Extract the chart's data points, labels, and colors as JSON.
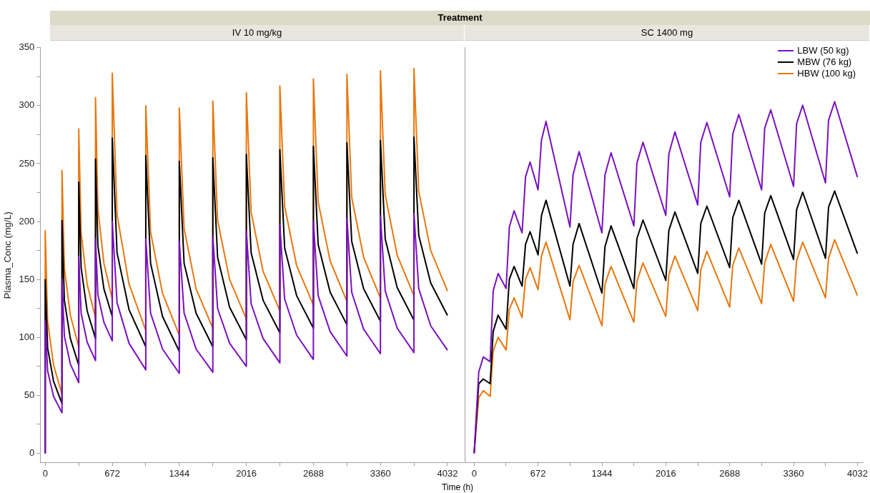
{
  "chart_data": [
    {
      "type": "line",
      "title": "Treatment",
      "subtitle": "IV 10 mg/kg",
      "xlabel": "Time (h)",
      "ylabel": "Plasma_Conc (mg/L)",
      "x": [
        0,
        0,
        24,
        84,
        168,
        168,
        192,
        252,
        336,
        336,
        360,
        420,
        504,
        504,
        528,
        588,
        672,
        672,
        720,
        840,
        1008,
        1008,
        1056,
        1176,
        1344,
        1344,
        1392,
        1512,
        1680,
        1680,
        1728,
        1848,
        2016,
        2016,
        2064,
        2184,
        2352,
        2352,
        2400,
        2520,
        2688,
        2688,
        2736,
        2856,
        3024,
        3024,
        3072,
        3192,
        3360,
        3360,
        3408,
        3528,
        3696,
        3696,
        3744,
        3864,
        4032
      ],
      "series": [
        {
          "color": "#7a10c0",
          "values": [
            0,
            115,
            71,
            49,
            35,
            150,
            101,
            77,
            61,
            170,
            121,
            96,
            80,
            185,
            137,
            113,
            97,
            200,
            130,
            95,
            72,
            185,
            121,
            90,
            69,
            183,
            121,
            90,
            70,
            187,
            125,
            95,
            75,
            192,
            129,
            99,
            78,
            197,
            133,
            102,
            81,
            200,
            136,
            105,
            84,
            203,
            139,
            107,
            86,
            205,
            140,
            108,
            87,
            207,
            142,
            110,
            89
          ]
        },
        {
          "color": "#000000",
          "values": [
            0,
            150,
            91,
            62,
            43,
            201,
            132,
            99,
            76,
            234,
            160,
            123,
            99,
            254,
            179,
            142,
            118,
            272,
            173,
            124,
            92,
            257,
            164,
            118,
            88,
            252,
            164,
            121,
            92,
            255,
            169,
            126,
            98,
            258,
            173,
            132,
            104,
            262,
            177,
            136,
            108,
            265,
            180,
            139,
            111,
            268,
            183,
            142,
            114,
            270,
            185,
            143,
            115,
            273,
            188,
            147,
            119
          ]
        },
        {
          "color": "#e8770e",
          "values": [
            0,
            192,
            114,
            76,
            51,
            244,
            160,
            119,
            92,
            280,
            190,
            146,
            117,
            307,
            211,
            164,
            133,
            328,
            206,
            146,
            106,
            300,
            191,
            138,
            102,
            298,
            194,
            142,
            108,
            304,
            201,
            150,
            116,
            311,
            208,
            157,
            123,
            317,
            213,
            162,
            128,
            323,
            217,
            166,
            131,
            327,
            221,
            169,
            134,
            330,
            223,
            171,
            136,
            332,
            226,
            175,
            140
          ]
        }
      ],
      "xlim": [
        -50,
        4190
      ],
      "xticks": [
        0,
        {
          "value": 336,
          "label": null
        },
        672,
        {
          "value": 1008,
          "label": null
        },
        1344,
        {
          "value": 1680,
          "label": null
        },
        2016,
        {
          "value": 2352,
          "label": null
        },
        2688,
        {
          "value": 3024,
          "label": null
        },
        3360,
        {
          "value": 3696,
          "label": null
        },
        4032
      ],
      "ylim": [
        -8,
        350
      ],
      "yticks": [
        0,
        {
          "value": 25,
          "label": null
        },
        50,
        {
          "value": 75,
          "label": null
        },
        100,
        {
          "value": 125,
          "label": null
        },
        150,
        {
          "value": 175,
          "label": null
        },
        200,
        {
          "value": 225,
          "label": null
        },
        250,
        {
          "value": 275,
          "label": null
        },
        300,
        {
          "value": 325,
          "label": null
        },
        350
      ]
    },
    {
      "type": "line",
      "subtitle": "SC 1400 mg",
      "x": [
        0,
        48,
        96,
        168,
        200,
        252,
        336,
        370,
        420,
        504,
        540,
        588,
        672,
        708,
        756,
        1008,
        1040,
        1104,
        1344,
        1376,
        1440,
        1680,
        1712,
        1776,
        2016,
        2048,
        2112,
        2352,
        2384,
        2448,
        2688,
        2720,
        2784,
        3024,
        3056,
        3120,
        3360,
        3392,
        3456,
        3696,
        3728,
        3792,
        4032
      ],
      "series": [
        {
          "name": "LBW (50 kg)",
          "color": "#7a10c0",
          "values": [
            0,
            70,
            83,
            79,
            140,
            155,
            142,
            195,
            209,
            190,
            238,
            251,
            227,
            270,
            286,
            195,
            240,
            260,
            190,
            240,
            259,
            196,
            250,
            268,
            205,
            258,
            277,
            214,
            268,
            285,
            221,
            275,
            292,
            227,
            280,
            296,
            230,
            284,
            300,
            233,
            287,
            303,
            238
          ]
        },
        {
          "name": "MBW (76 kg)",
          "color": "#000000",
          "values": [
            0,
            60,
            64,
            60,
            105,
            119,
            107,
            150,
            161,
            144,
            180,
            191,
            171,
            205,
            218,
            144,
            180,
            198,
            138,
            178,
            196,
            142,
            185,
            201,
            149,
            192,
            208,
            155,
            198,
            213,
            160,
            203,
            218,
            163,
            207,
            222,
            167,
            210,
            225,
            168,
            212,
            226,
            172
          ]
        },
        {
          "name": "HBW (100 kg)",
          "color": "#e8770e",
          "values": [
            0,
            48,
            54,
            49,
            88,
            100,
            89,
            124,
            134,
            117,
            150,
            160,
            141,
            170,
            182,
            115,
            148,
            162,
            110,
            146,
            161,
            113,
            148,
            164,
            118,
            154,
            170,
            123,
            158,
            174,
            126,
            162,
            177,
            129,
            164,
            180,
            131,
            166,
            182,
            134,
            168,
            184,
            136
          ]
        }
      ],
      "xlim": [
        -100,
        4090
      ],
      "xticks": [
        0,
        {
          "value": 336,
          "label": null
        },
        672,
        {
          "value": 1008,
          "label": null
        },
        1344,
        {
          "value": 1680,
          "label": null
        },
        2016,
        {
          "value": 2352,
          "label": null
        },
        2688,
        {
          "value": 3024,
          "label": null
        },
        3360,
        {
          "value": 3696,
          "label": null
        },
        4032
      ],
      "ylim": [
        -8,
        350
      ],
      "tick_labels": "x",
      "legend": "top right"
    }
  ]
}
